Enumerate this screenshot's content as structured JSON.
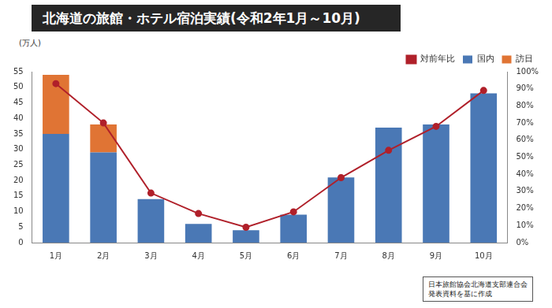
{
  "chart_data": {
    "type": "bar",
    "title": "北海道の旅館・ホテル宿泊実績(令和2年1月～10月)",
    "y_label": "(万人)",
    "annotations": [
      "日本旅館協会北海道支部連合会",
      "発表資料を基に作成"
    ],
    "categories": [
      "1月",
      "2月",
      "3月",
      "4月",
      "5月",
      "6月",
      "7月",
      "8月",
      "9月",
      "10月"
    ],
    "stacked": true,
    "grid": false,
    "legend": "top-right",
    "series": [
      {
        "name": "国内",
        "type": "bar",
        "color": "#4a78b5",
        "values": [
          35,
          29,
          14,
          6,
          4,
          9,
          21,
          37,
          38,
          48
        ]
      },
      {
        "name": "訪日",
        "type": "bar",
        "color": "#e07434",
        "values": [
          19,
          9,
          0,
          0,
          0,
          0,
          0,
          0,
          0,
          0
        ]
      },
      {
        "name": "対前年比",
        "type": "line",
        "axis": "y2",
        "color": "#b0202a",
        "marker": "circle",
        "line_style": "solid",
        "values": [
          93,
          70,
          29,
          17,
          9,
          18,
          38,
          54,
          68,
          89
        ]
      }
    ],
    "ylim": [
      0,
      55
    ],
    "yticks": [
      0,
      5,
      10,
      15,
      20,
      25,
      30,
      35,
      40,
      45,
      50,
      55
    ],
    "y2lim": [
      0,
      100
    ],
    "y2ticks": [
      {
        "value": 0,
        "label": "0%"
      },
      {
        "value": 10,
        "label": "10%"
      },
      {
        "value": 20,
        "label": "20%"
      },
      {
        "value": 30,
        "label": "30%"
      },
      {
        "value": 40,
        "label": "40%"
      },
      {
        "value": 50,
        "label": "50%"
      },
      {
        "value": 60,
        "label": "60%"
      },
      {
        "value": 70,
        "label": "70%"
      },
      {
        "value": 80,
        "label": "80%"
      },
      {
        "value": 90,
        "label": "90%"
      },
      {
        "value": 100,
        "label": "100%"
      }
    ]
  }
}
